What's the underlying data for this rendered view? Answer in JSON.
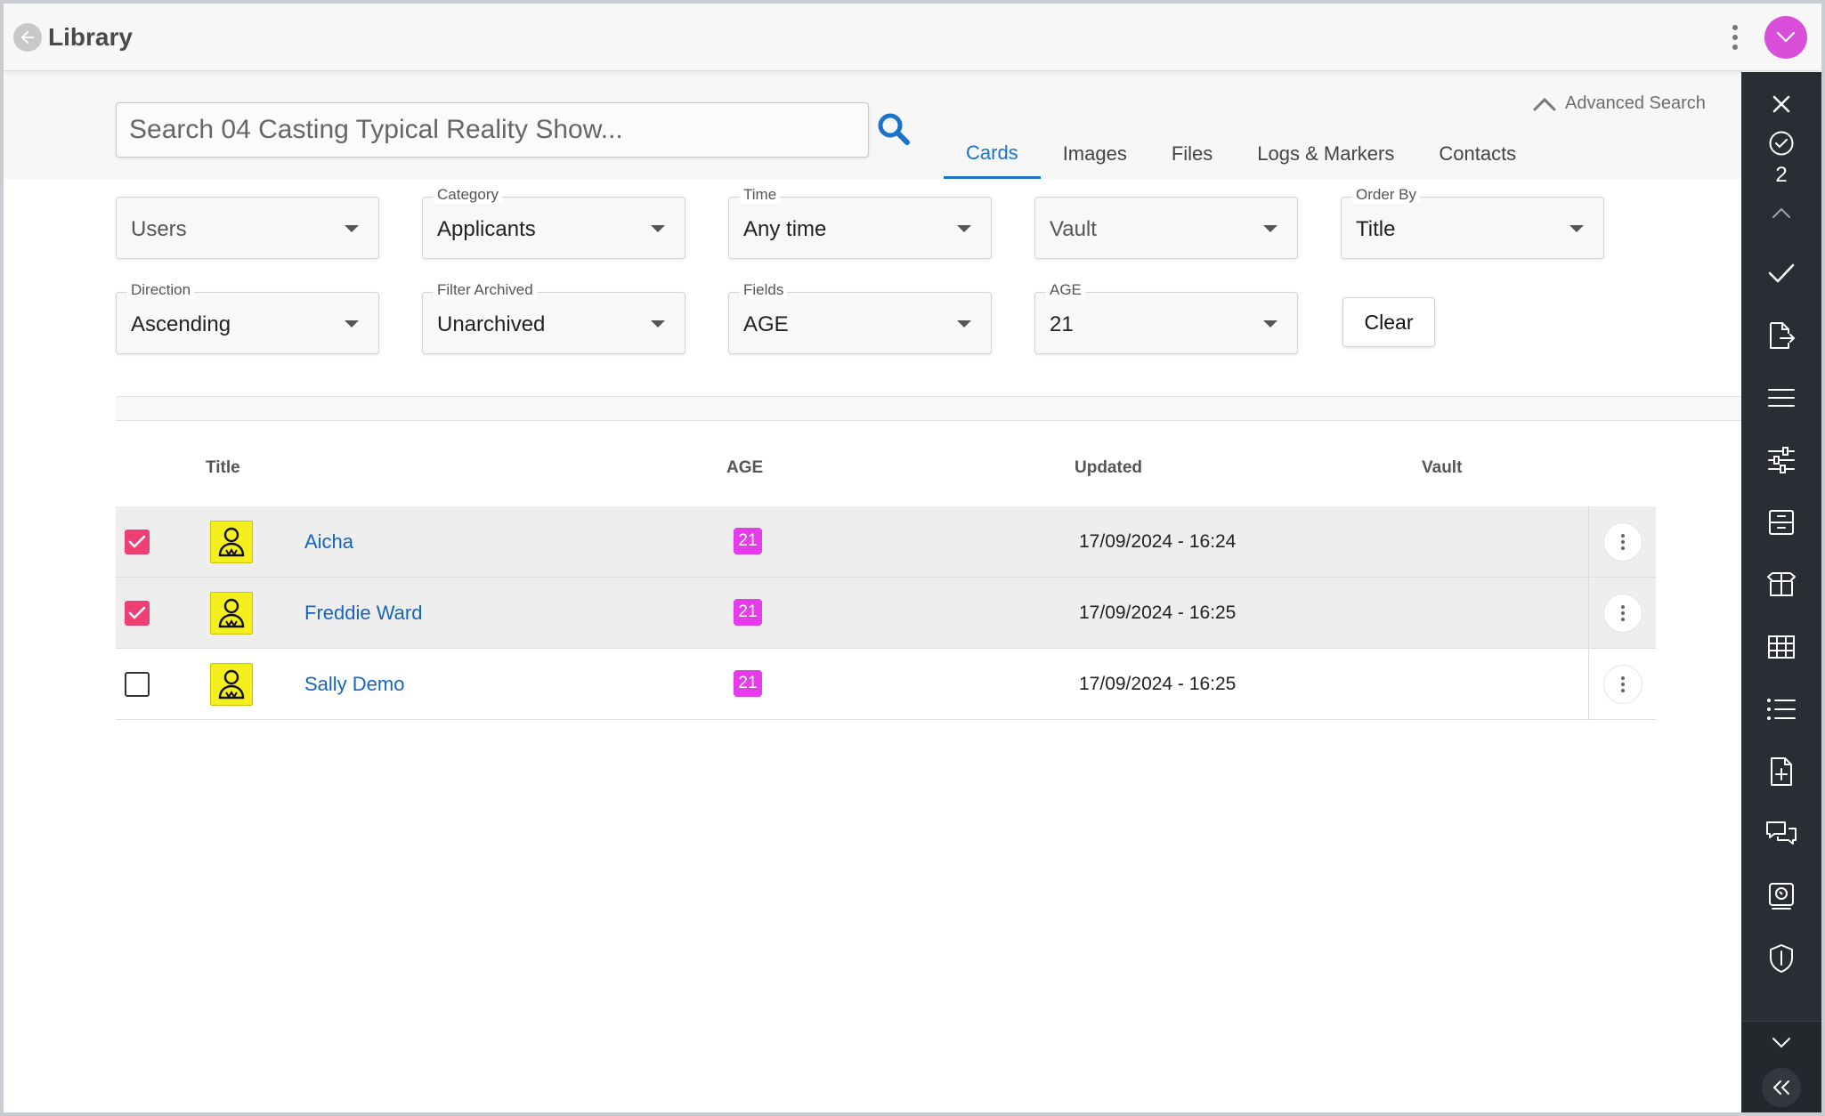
{
  "header": {
    "title": "Library",
    "avatar_color": "#d94fd9"
  },
  "search": {
    "placeholder": "Search 04 Casting Typical Reality Show...",
    "advanced_label": "Advanced Search"
  },
  "tabs": [
    {
      "label": "Cards",
      "active": true
    },
    {
      "label": "Images",
      "active": false
    },
    {
      "label": "Files",
      "active": false
    },
    {
      "label": "Logs & Markers",
      "active": false
    },
    {
      "label": "Contacts",
      "active": false
    }
  ],
  "filters": {
    "users": {
      "label": "",
      "value": "Users"
    },
    "category": {
      "label": "Category",
      "value": "Applicants"
    },
    "time": {
      "label": "Time",
      "value": "Any time"
    },
    "vault": {
      "label": "",
      "value": "Vault"
    },
    "order_by": {
      "label": "Order By",
      "value": "Title"
    },
    "direction": {
      "label": "Direction",
      "value": "Ascending"
    },
    "filter_archived": {
      "label": "Filter Archived",
      "value": "Unarchived"
    },
    "fields": {
      "label": "Fields",
      "value": "AGE"
    },
    "age": {
      "label": "AGE",
      "value": "21"
    },
    "clear_label": "Clear"
  },
  "table": {
    "columns": {
      "title": "Title",
      "age": "AGE",
      "updated": "Updated",
      "vault": "Vault"
    },
    "rows": [
      {
        "title": "Aicha",
        "age": "21",
        "updated": "17/09/2024 - 16:24",
        "checked": true
      },
      {
        "title": "Freddie Ward",
        "age": "21",
        "updated": "17/09/2024 - 16:25",
        "checked": true
      },
      {
        "title": "Sally Demo",
        "age": "21",
        "updated": "17/09/2024 - 16:25",
        "checked": false
      }
    ]
  },
  "sidebar": {
    "selected_count": "2",
    "icons": [
      "close-icon",
      "check-circle-icon",
      "chevron-up-icon",
      "check-icon",
      "file-export-icon",
      "lines-icon",
      "sliders-icon",
      "archive-icon",
      "box-icon",
      "grid-icon",
      "list-icon",
      "file-plus-icon",
      "chat-icon",
      "portrait-icon",
      "shield-icon",
      "chevron-down-icon",
      "double-chevron-left-icon"
    ]
  },
  "colors": {
    "accent": "#1a73c9",
    "checkbox": "#ee3f74",
    "age_badge": "#e53be8",
    "thumb": "#f5ee1e",
    "sidebar": "#2a2e34"
  }
}
